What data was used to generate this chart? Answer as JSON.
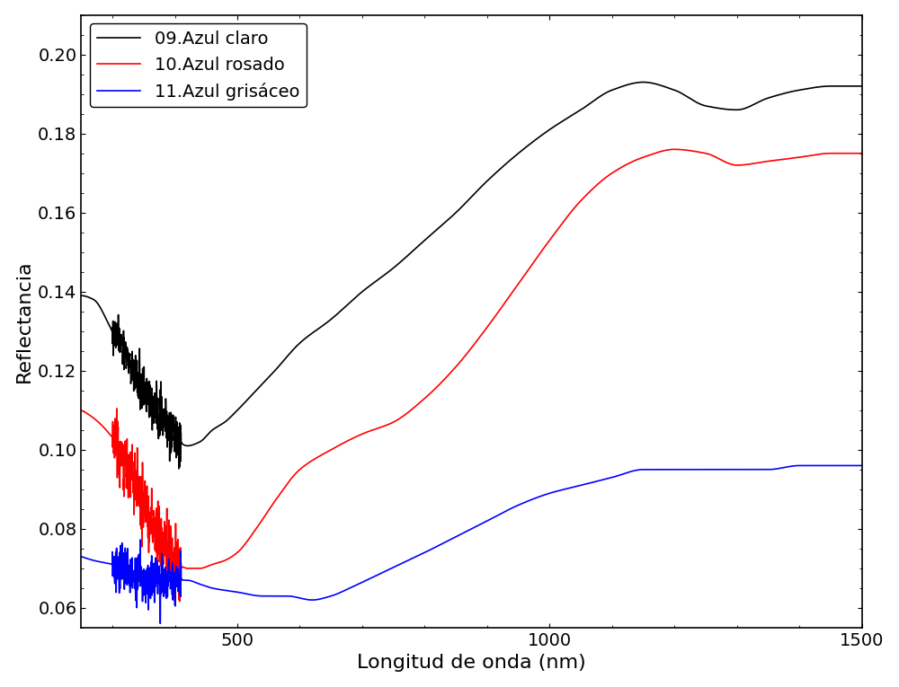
{
  "title": "",
  "xlabel": "Longitud de onda (nm)",
  "ylabel": "Reflectancia",
  "xlim": [
    250,
    1500
  ],
  "ylim": [
    0.055,
    0.21
  ],
  "yticks": [
    0.06,
    0.08,
    0.1,
    0.12,
    0.14,
    0.16,
    0.18,
    0.2
  ],
  "xticks": [
    500,
    1000,
    1500
  ],
  "legend": [
    {
      "label": "09.Azul claro",
      "color": "#000000"
    },
    {
      "label": "10.Azul rosado",
      "color": "#ff0000"
    },
    {
      "label": "11.Azul grisáceo",
      "color": "#0000ff"
    }
  ],
  "background_color": "#ffffff",
  "xlabel_fontsize": 16,
  "ylabel_fontsize": 16,
  "tick_fontsize": 14,
  "legend_fontsize": 14,
  "black_knots": [
    [
      250,
      0.139
    ],
    [
      270,
      0.138
    ],
    [
      300,
      0.13
    ],
    [
      320,
      0.125
    ],
    [
      340,
      0.118
    ],
    [
      360,
      0.112
    ],
    [
      380,
      0.108
    ],
    [
      400,
      0.103
    ],
    [
      420,
      0.101
    ],
    [
      440,
      0.102
    ],
    [
      460,
      0.105
    ],
    [
      480,
      0.107
    ],
    [
      500,
      0.11
    ],
    [
      530,
      0.115
    ],
    [
      560,
      0.12
    ],
    [
      600,
      0.127
    ],
    [
      650,
      0.133
    ],
    [
      700,
      0.14
    ],
    [
      750,
      0.146
    ],
    [
      800,
      0.153
    ],
    [
      850,
      0.16
    ],
    [
      900,
      0.168
    ],
    [
      950,
      0.175
    ],
    [
      1000,
      0.181
    ],
    [
      1050,
      0.186
    ],
    [
      1100,
      0.191
    ],
    [
      1150,
      0.193
    ],
    [
      1200,
      0.191
    ],
    [
      1250,
      0.187
    ],
    [
      1300,
      0.186
    ],
    [
      1350,
      0.189
    ],
    [
      1400,
      0.191
    ],
    [
      1450,
      0.192
    ],
    [
      1500,
      0.192
    ]
  ],
  "red_knots": [
    [
      250,
      0.11
    ],
    [
      270,
      0.108
    ],
    [
      300,
      0.103
    ],
    [
      320,
      0.097
    ],
    [
      340,
      0.09
    ],
    [
      360,
      0.083
    ],
    [
      380,
      0.077
    ],
    [
      400,
      0.072
    ],
    [
      420,
      0.07
    ],
    [
      440,
      0.07
    ],
    [
      460,
      0.071
    ],
    [
      480,
      0.072
    ],
    [
      500,
      0.074
    ],
    [
      530,
      0.08
    ],
    [
      560,
      0.087
    ],
    [
      600,
      0.095
    ],
    [
      650,
      0.1
    ],
    [
      700,
      0.104
    ],
    [
      750,
      0.107
    ],
    [
      800,
      0.113
    ],
    [
      850,
      0.121
    ],
    [
      900,
      0.131
    ],
    [
      950,
      0.142
    ],
    [
      1000,
      0.153
    ],
    [
      1050,
      0.163
    ],
    [
      1100,
      0.17
    ],
    [
      1150,
      0.174
    ],
    [
      1200,
      0.176
    ],
    [
      1250,
      0.175
    ],
    [
      1300,
      0.172
    ],
    [
      1350,
      0.173
    ],
    [
      1400,
      0.174
    ],
    [
      1450,
      0.175
    ],
    [
      1500,
      0.175
    ]
  ],
  "blue_knots": [
    [
      250,
      0.073
    ],
    [
      270,
      0.072
    ],
    [
      300,
      0.071
    ],
    [
      320,
      0.07
    ],
    [
      340,
      0.068
    ],
    [
      360,
      0.067
    ],
    [
      380,
      0.067
    ],
    [
      400,
      0.067
    ],
    [
      420,
      0.067
    ],
    [
      440,
      0.066
    ],
    [
      460,
      0.065
    ],
    [
      500,
      0.064
    ],
    [
      540,
      0.063
    ],
    [
      580,
      0.063
    ],
    [
      620,
      0.062
    ],
    [
      650,
      0.063
    ],
    [
      680,
      0.065
    ],
    [
      720,
      0.068
    ],
    [
      760,
      0.071
    ],
    [
      800,
      0.074
    ],
    [
      850,
      0.078
    ],
    [
      900,
      0.082
    ],
    [
      950,
      0.086
    ],
    [
      1000,
      0.089
    ],
    [
      1050,
      0.091
    ],
    [
      1100,
      0.093
    ],
    [
      1150,
      0.095
    ],
    [
      1200,
      0.095
    ],
    [
      1250,
      0.095
    ],
    [
      1300,
      0.095
    ],
    [
      1350,
      0.095
    ],
    [
      1400,
      0.096
    ],
    [
      1450,
      0.096
    ],
    [
      1500,
      0.096
    ]
  ],
  "noise_xrange": [
    300,
    410
  ],
  "noise_std_black": 0.003,
  "noise_std_red": 0.004,
  "noise_std_blue": 0.003
}
